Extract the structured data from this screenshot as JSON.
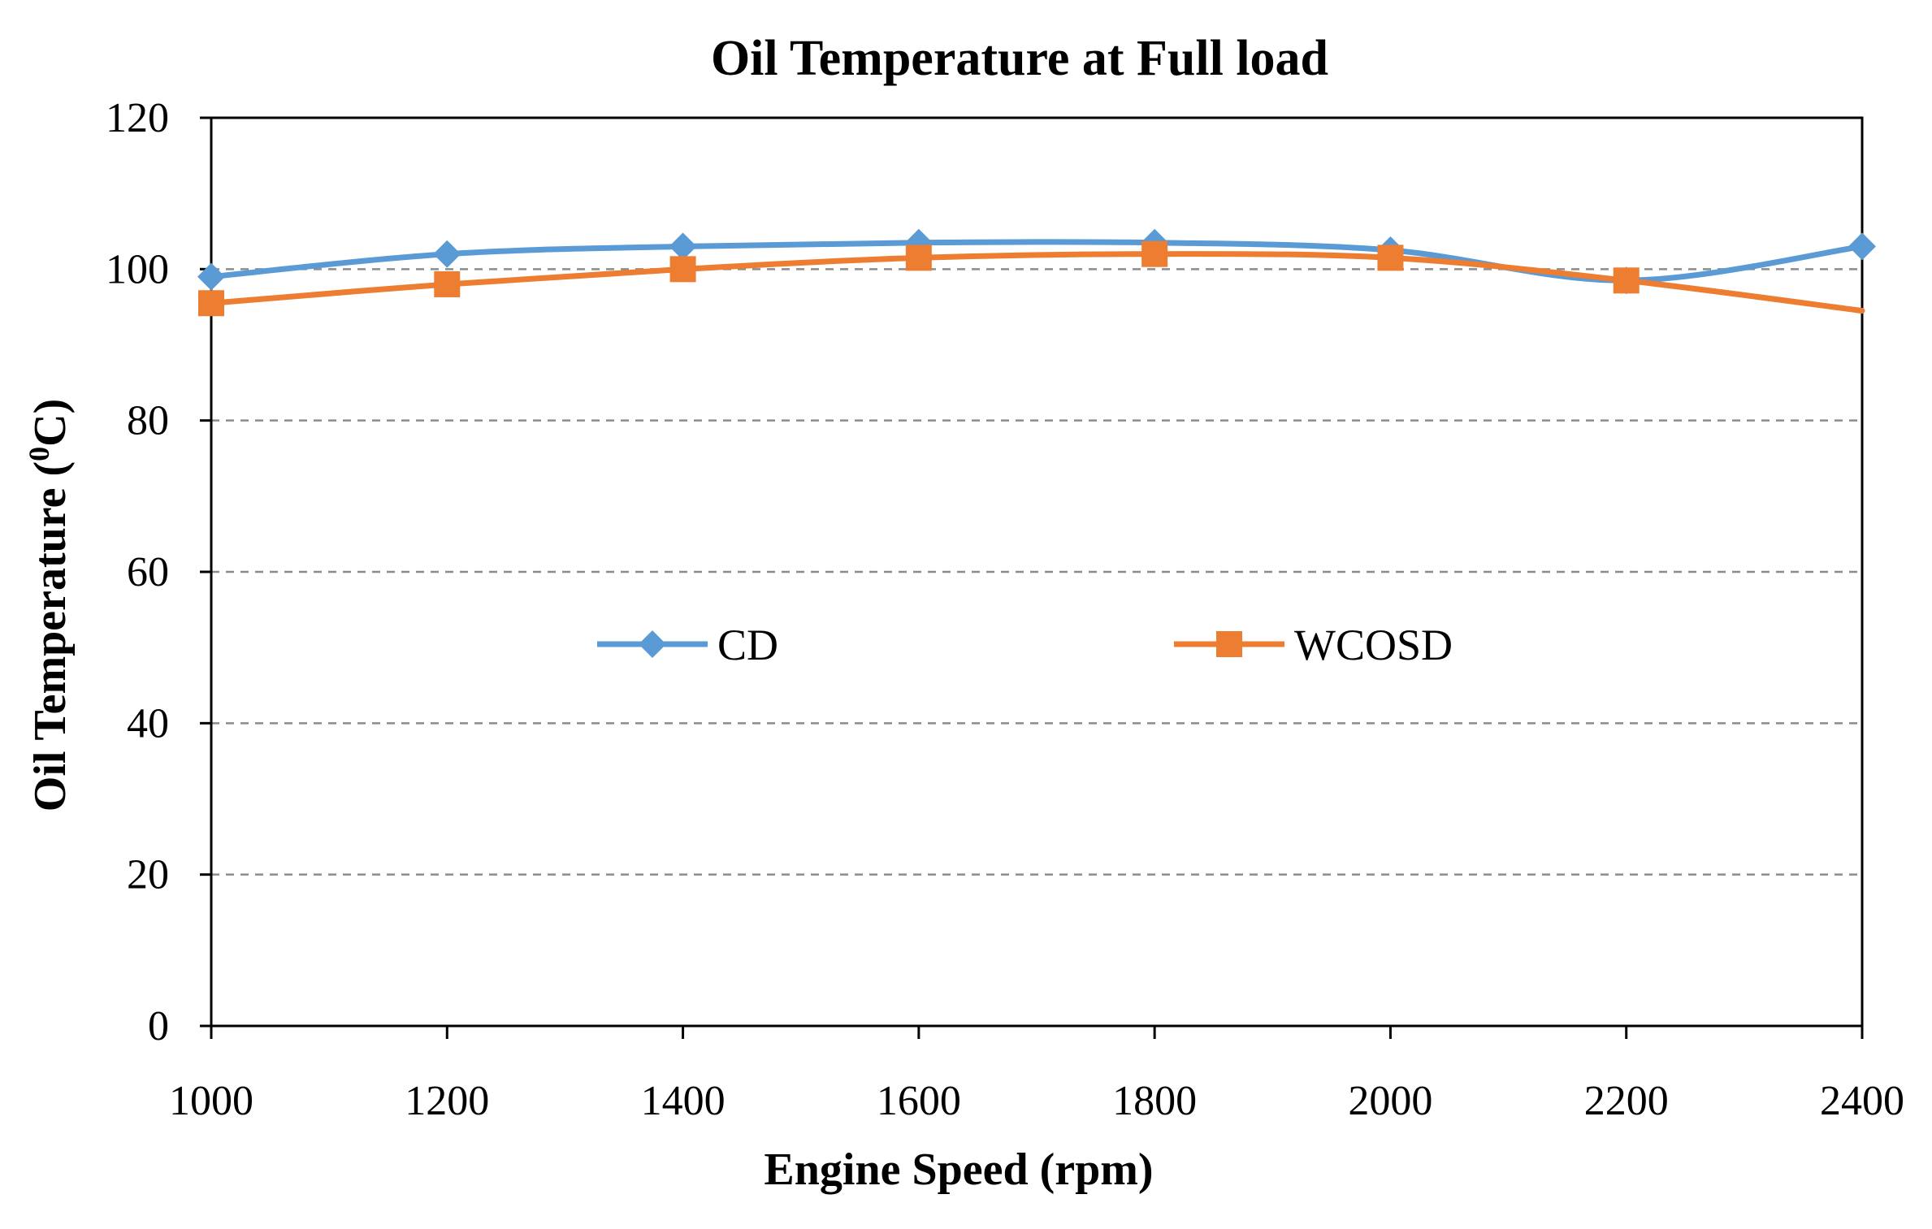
{
  "chart_data": {
    "type": "line",
    "title": "Oil Temperature at Full load",
    "xlabel": "Engine Speed (rpm)",
    "ylabel_main": "Oil Temperature (",
    "ylabel_sup": "0",
    "ylabel_end": "C)",
    "x": [
      1000,
      1200,
      1400,
      1600,
      1800,
      2000,
      2200,
      2400
    ],
    "x_tick_labels": [
      "1000",
      "1200",
      "1400",
      "1600",
      "1800",
      "2000",
      "2200",
      "2400"
    ],
    "y_tick_labels": [
      "0",
      "20",
      "40",
      "60",
      "80",
      "100",
      "120"
    ],
    "y_ticks": [
      0,
      20,
      40,
      60,
      80,
      100,
      120
    ],
    "xlim": [
      1000,
      2400
    ],
    "ylim": [
      0,
      120
    ],
    "grid": "horizontal dashed",
    "legend_position": "center",
    "series": [
      {
        "name": "CD",
        "marker": "diamond",
        "color": "#5b9bd5",
        "values": [
          99,
          102,
          103,
          103.5,
          103.5,
          102.5,
          98.5,
          103
        ]
      },
      {
        "name": "WCOSD",
        "marker": "square",
        "color": "#ed7d31",
        "values": [
          95.5,
          98,
          100,
          101.5,
          102,
          101.5,
          98.5,
          94.5
        ]
      }
    ]
  }
}
